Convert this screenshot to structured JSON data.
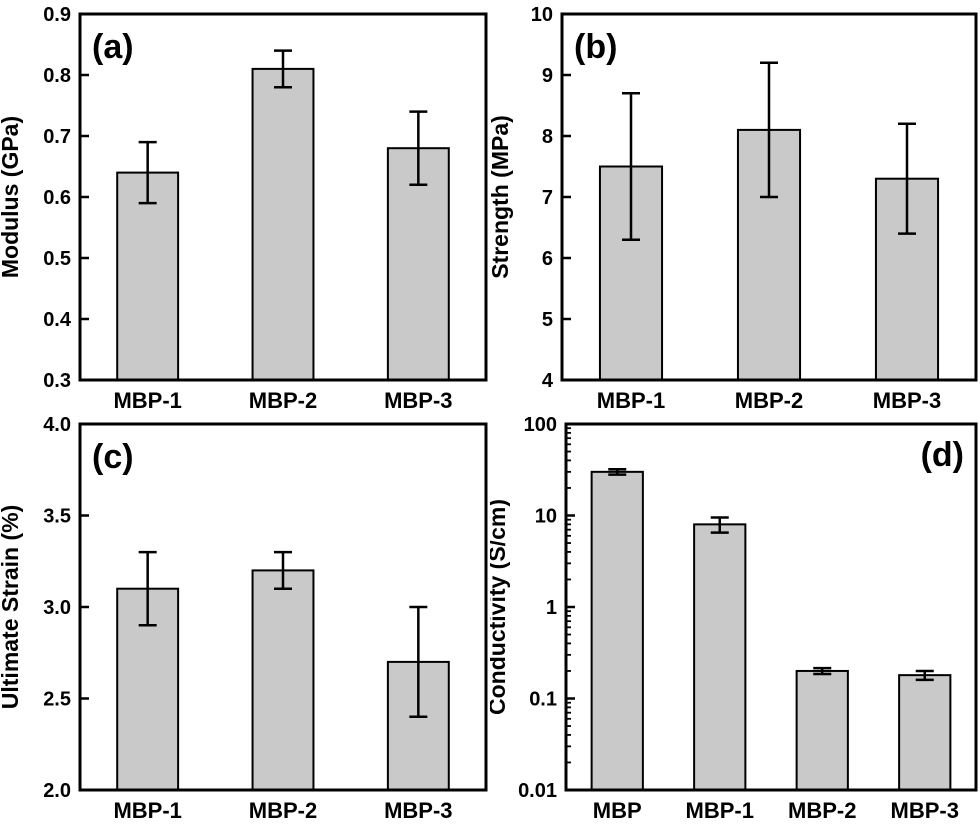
{
  "figure": {
    "background": "#ffffff",
    "bar_fill": "#c9c9c9",
    "axis_color": "#000000"
  },
  "chart_data": [
    {
      "type": "bar",
      "panel_label": "(a)",
      "label_position": "top-left",
      "ylabel": "Modulus (GPa)",
      "scale": "linear",
      "ylim": [
        0.3,
        0.9
      ],
      "yticks": [
        0.3,
        0.4,
        0.5,
        0.6,
        0.7,
        0.8,
        0.9
      ],
      "ytick_labels": [
        "0.3",
        "0.4",
        "0.5",
        "0.6",
        "0.7",
        "0.8",
        "0.9"
      ],
      "categories": [
        "MBP-1",
        "MBP-2",
        "MBP-3"
      ],
      "values": [
        0.64,
        0.81,
        0.68
      ],
      "errors": [
        0.05,
        0.03,
        0.06
      ],
      "bar_ratio": 0.45,
      "grid": false,
      "legend": "none"
    },
    {
      "type": "bar",
      "panel_label": "(b)",
      "label_position": "top-left",
      "ylabel": "Strength (MPa)",
      "scale": "linear",
      "ylim": [
        4,
        10
      ],
      "yticks": [
        4,
        5,
        6,
        7,
        8,
        9,
        10
      ],
      "ytick_labels": [
        "4",
        "5",
        "6",
        "7",
        "8",
        "9",
        "10"
      ],
      "categories": [
        "MBP-1",
        "MBP-2",
        "MBP-3"
      ],
      "values": [
        7.5,
        8.1,
        7.3
      ],
      "errors": [
        1.2,
        1.1,
        0.9
      ],
      "bar_ratio": 0.45,
      "grid": false,
      "legend": "none"
    },
    {
      "type": "bar",
      "panel_label": "(c)",
      "label_position": "top-left",
      "ylabel": "Ultimate Strain (%)",
      "scale": "linear",
      "ylim": [
        2.0,
        4.0
      ],
      "yticks": [
        2.0,
        2.5,
        3.0,
        3.5,
        4.0
      ],
      "ytick_labels": [
        "2.0",
        "2.5",
        "3.0",
        "3.5",
        "4.0"
      ],
      "categories": [
        "MBP-1",
        "MBP-2",
        "MBP-3"
      ],
      "values": [
        3.1,
        3.2,
        2.7
      ],
      "errors": [
        0.2,
        0.1,
        0.3
      ],
      "bar_ratio": 0.45,
      "grid": false,
      "legend": "none"
    },
    {
      "type": "bar",
      "panel_label": "(d)",
      "label_position": "top-right",
      "ylabel": "Conductivity (S/cm)",
      "scale": "log",
      "ylim": [
        0.01,
        100
      ],
      "yticks": [
        0.01,
        0.1,
        1,
        10,
        100
      ],
      "ytick_labels": [
        "0.01",
        "0.1",
        "1",
        "10",
        "100"
      ],
      "categories": [
        "MBP",
        "MBP-1",
        "MBP-2",
        "MBP-3"
      ],
      "values": [
        30,
        8,
        0.2,
        0.18
      ],
      "errors": [
        2,
        1.5,
        0.015,
        0.02
      ],
      "bar_ratio": 0.5,
      "grid": false,
      "legend": "none"
    }
  ]
}
